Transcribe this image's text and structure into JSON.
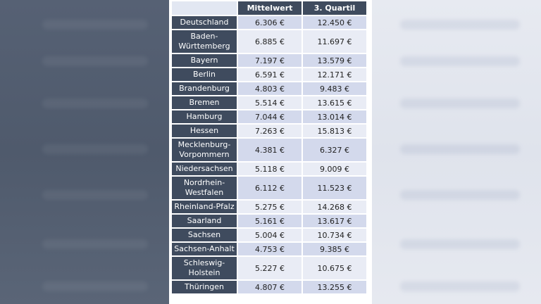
{
  "table": {
    "columns": [
      "",
      "Mittelwert",
      "3. Quartil"
    ],
    "rows": [
      {
        "region": "Deutschland",
        "mittelwert": "6.306 €",
        "quartil3": "12.450 €"
      },
      {
        "region": "Baden-\nWürttemberg",
        "mittelwert": "6.885 €",
        "quartil3": "11.697 €"
      },
      {
        "region": "Bayern",
        "mittelwert": "7.197 €",
        "quartil3": "13.579 €"
      },
      {
        "region": "Berlin",
        "mittelwert": "6.591 €",
        "quartil3": "12.171 €"
      },
      {
        "region": "Brandenburg",
        "mittelwert": "4.803 €",
        "quartil3": "9.483 €"
      },
      {
        "region": "Bremen",
        "mittelwert": "5.514 €",
        "quartil3": "13.615 €"
      },
      {
        "region": "Hamburg",
        "mittelwert": "7.044 €",
        "quartil3": "13.014 €"
      },
      {
        "region": "Hessen",
        "mittelwert": "7.263 €",
        "quartil3": "15.813 €"
      },
      {
        "region": "Mecklenburg-\nVorpommern",
        "mittelwert": "4.381 €",
        "quartil3": "6.327 €"
      },
      {
        "region": "Niedersachsen",
        "mittelwert": "5.118 €",
        "quartil3": "9.009 €"
      },
      {
        "region": "Nordrhein-\nWestfalen",
        "mittelwert": "6.112 €",
        "quartil3": "11.523 €"
      },
      {
        "region": "Rheinland-Pfalz",
        "mittelwert": "5.275 €",
        "quartil3": "14.268 €"
      },
      {
        "region": "Saarland",
        "mittelwert": "5.161 €",
        "quartil3": "13.617 €"
      },
      {
        "region": "Sachsen",
        "mittelwert": "5.004 €",
        "quartil3": "10.734 €"
      },
      {
        "region": "Sachsen-Anhalt",
        "mittelwert": "4.753 €",
        "quartil3": "9.385 €"
      },
      {
        "region": "Schleswig-\nHolstein",
        "mittelwert": "5.227 €",
        "quartil3": "10.675 €"
      },
      {
        "region": "Thüringen",
        "mittelwert": "4.807 €",
        "quartil3": "13.255 €"
      }
    ]
  },
  "colors": {
    "header_bg": "#3f4b5e",
    "row_odd": "#d3d9ec",
    "row_even": "#e9ecf5"
  }
}
